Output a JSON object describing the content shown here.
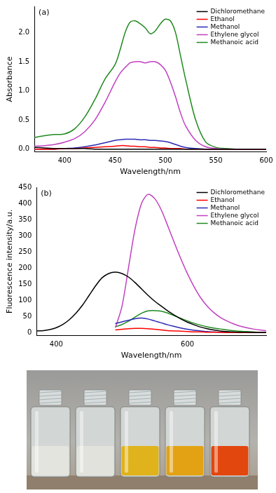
{
  "chart_data": [
    {
      "type": "line",
      "title": "(a)",
      "x_label": "Wavelength/nm",
      "y_label": "Absorbance",
      "xlim": [
        370,
        600
      ],
      "xticks": [
        400,
        450,
        500,
        550,
        600
      ],
      "ylim": [
        -0.05,
        2.45
      ],
      "yticks": [
        {
          "value": 0,
          "label": "0.0"
        },
        {
          "value": 0.5,
          "label": "0.5"
        },
        {
          "value": 1,
          "label": "1.0"
        },
        {
          "value": 1.5,
          "label": "1.5"
        },
        {
          "value": 2,
          "label": "2.0"
        }
      ],
      "grid": false,
      "legend": "upper right",
      "x": [
        370,
        380,
        390,
        400,
        410,
        420,
        430,
        440,
        450,
        455,
        460,
        465,
        470,
        475,
        480,
        485,
        490,
        495,
        500,
        505,
        510,
        515,
        520,
        530,
        540,
        550,
        560,
        570,
        580,
        590,
        600
      ],
      "series": [
        {
          "name": "Dichloromethane",
          "color": "#000000",
          "values": [
            0.03,
            0.02,
            0.01,
            0.01,
            0.01,
            0.01,
            0,
            0,
            0,
            0,
            0,
            0,
            0,
            0,
            0,
            0,
            0,
            0,
            0,
            0,
            0,
            0,
            0,
            0,
            0,
            0,
            0,
            0,
            0,
            0,
            0
          ]
        },
        {
          "name": "Ethanol",
          "color": "#ff0000",
          "values": [
            0,
            0,
            0,
            0.01,
            0.01,
            0.02,
            0.03,
            0.04,
            0.05,
            0.06,
            0.06,
            0.05,
            0.05,
            0.04,
            0.04,
            0.03,
            0.03,
            0.02,
            0.02,
            0.01,
            0.01,
            0.01,
            0,
            0,
            0,
            0,
            0,
            0,
            0,
            0,
            0
          ]
        },
        {
          "name": "Methanol",
          "color": "#2a2ab4",
          "values": [
            0,
            0,
            0,
            0.01,
            0.02,
            0.04,
            0.07,
            0.11,
            0.15,
            0.16,
            0.17,
            0.17,
            0.17,
            0.16,
            0.16,
            0.15,
            0.15,
            0.14,
            0.13,
            0.11,
            0.08,
            0.05,
            0.03,
            0.01,
            0,
            0,
            0,
            0,
            0,
            0,
            0
          ]
        },
        {
          "name": "Ethylene glycol",
          "color": "#c040c0",
          "values": [
            0.05,
            0.06,
            0.08,
            0.12,
            0.18,
            0.3,
            0.5,
            0.8,
            1.15,
            1.3,
            1.4,
            1.48,
            1.5,
            1.5,
            1.48,
            1.5,
            1.5,
            1.45,
            1.35,
            1.15,
            0.9,
            0.62,
            0.4,
            0.15,
            0.04,
            0.01,
            0,
            0,
            0,
            0,
            0
          ]
        },
        {
          "name": "Methanoic acid",
          "color": "#1f8a1f",
          "values": [
            0.2,
            0.23,
            0.25,
            0.26,
            0.35,
            0.55,
            0.85,
            1.2,
            1.45,
            1.7,
            2.0,
            2.18,
            2.2,
            2.15,
            2.08,
            1.98,
            2.03,
            2.15,
            2.23,
            2.2,
            2.0,
            1.6,
            1.2,
            0.5,
            0.12,
            0.03,
            0.01,
            0,
            0,
            0,
            0
          ]
        }
      ]
    },
    {
      "type": "line",
      "title": "(b)",
      "x_label": "Wavelength/nm",
      "y_label": "Fluorescence intensity/a.u.",
      "xlim": [
        370,
        720
      ],
      "xticks": [
        400,
        600
      ],
      "ylim": [
        -10,
        450
      ],
      "yticks": [
        0,
        50,
        100,
        150,
        200,
        250,
        300,
        350,
        400,
        450
      ],
      "grid": false,
      "legend": "upper right",
      "x": [
        370,
        380,
        390,
        400,
        410,
        420,
        430,
        440,
        450,
        460,
        470,
        480,
        490,
        500,
        510,
        520,
        530,
        540,
        550,
        560,
        570,
        580,
        590,
        600,
        610,
        620,
        630,
        640,
        650,
        660,
        670,
        680,
        690,
        700,
        710,
        720
      ],
      "series": [
        {
          "name": "Dichloromethane",
          "color": "#000000",
          "values": [
            5,
            6,
            9,
            15,
            25,
            40,
            60,
            85,
            115,
            145,
            170,
            183,
            187,
            183,
            172,
            155,
            135,
            115,
            97,
            82,
            67,
            54,
            42,
            32,
            24,
            17,
            12,
            8,
            5,
            3,
            2,
            1,
            1,
            0,
            0,
            0
          ]
        },
        {
          "name": "Ethanol",
          "color": "#ff0000",
          "values": [
            null,
            null,
            null,
            null,
            null,
            null,
            null,
            null,
            null,
            null,
            null,
            null,
            8,
            10,
            12,
            13,
            13,
            12,
            10,
            8,
            6,
            5,
            4,
            3,
            2,
            2,
            1,
            1,
            1,
            0,
            0,
            0,
            0,
            0,
            0,
            0
          ]
        },
        {
          "name": "Methanol",
          "color": "#2a2ab4",
          "values": [
            null,
            null,
            null,
            null,
            null,
            null,
            null,
            null,
            null,
            null,
            null,
            null,
            28,
            33,
            38,
            43,
            45,
            42,
            36,
            30,
            24,
            19,
            14,
            10,
            7,
            5,
            3,
            2,
            1,
            1,
            0,
            0,
            0,
            0,
            0,
            0
          ]
        },
        {
          "name": "Ethylene glycol",
          "color": "#c040c0",
          "values": [
            null,
            null,
            null,
            null,
            null,
            null,
            null,
            null,
            null,
            null,
            null,
            null,
            15,
            80,
            200,
            320,
            400,
            428,
            415,
            380,
            330,
            278,
            228,
            182,
            142,
            108,
            82,
            62,
            47,
            36,
            27,
            20,
            15,
            11,
            8,
            6
          ]
        },
        {
          "name": "Methanoic acid",
          "color": "#1f8a1f",
          "values": [
            null,
            null,
            null,
            null,
            null,
            null,
            null,
            null,
            null,
            null,
            null,
            null,
            18,
            25,
            35,
            48,
            60,
            67,
            68,
            66,
            60,
            52,
            44,
            36,
            29,
            23,
            18,
            14,
            11,
            8,
            6,
            4,
            3,
            2,
            1,
            1
          ]
        }
      ]
    }
  ]
}
